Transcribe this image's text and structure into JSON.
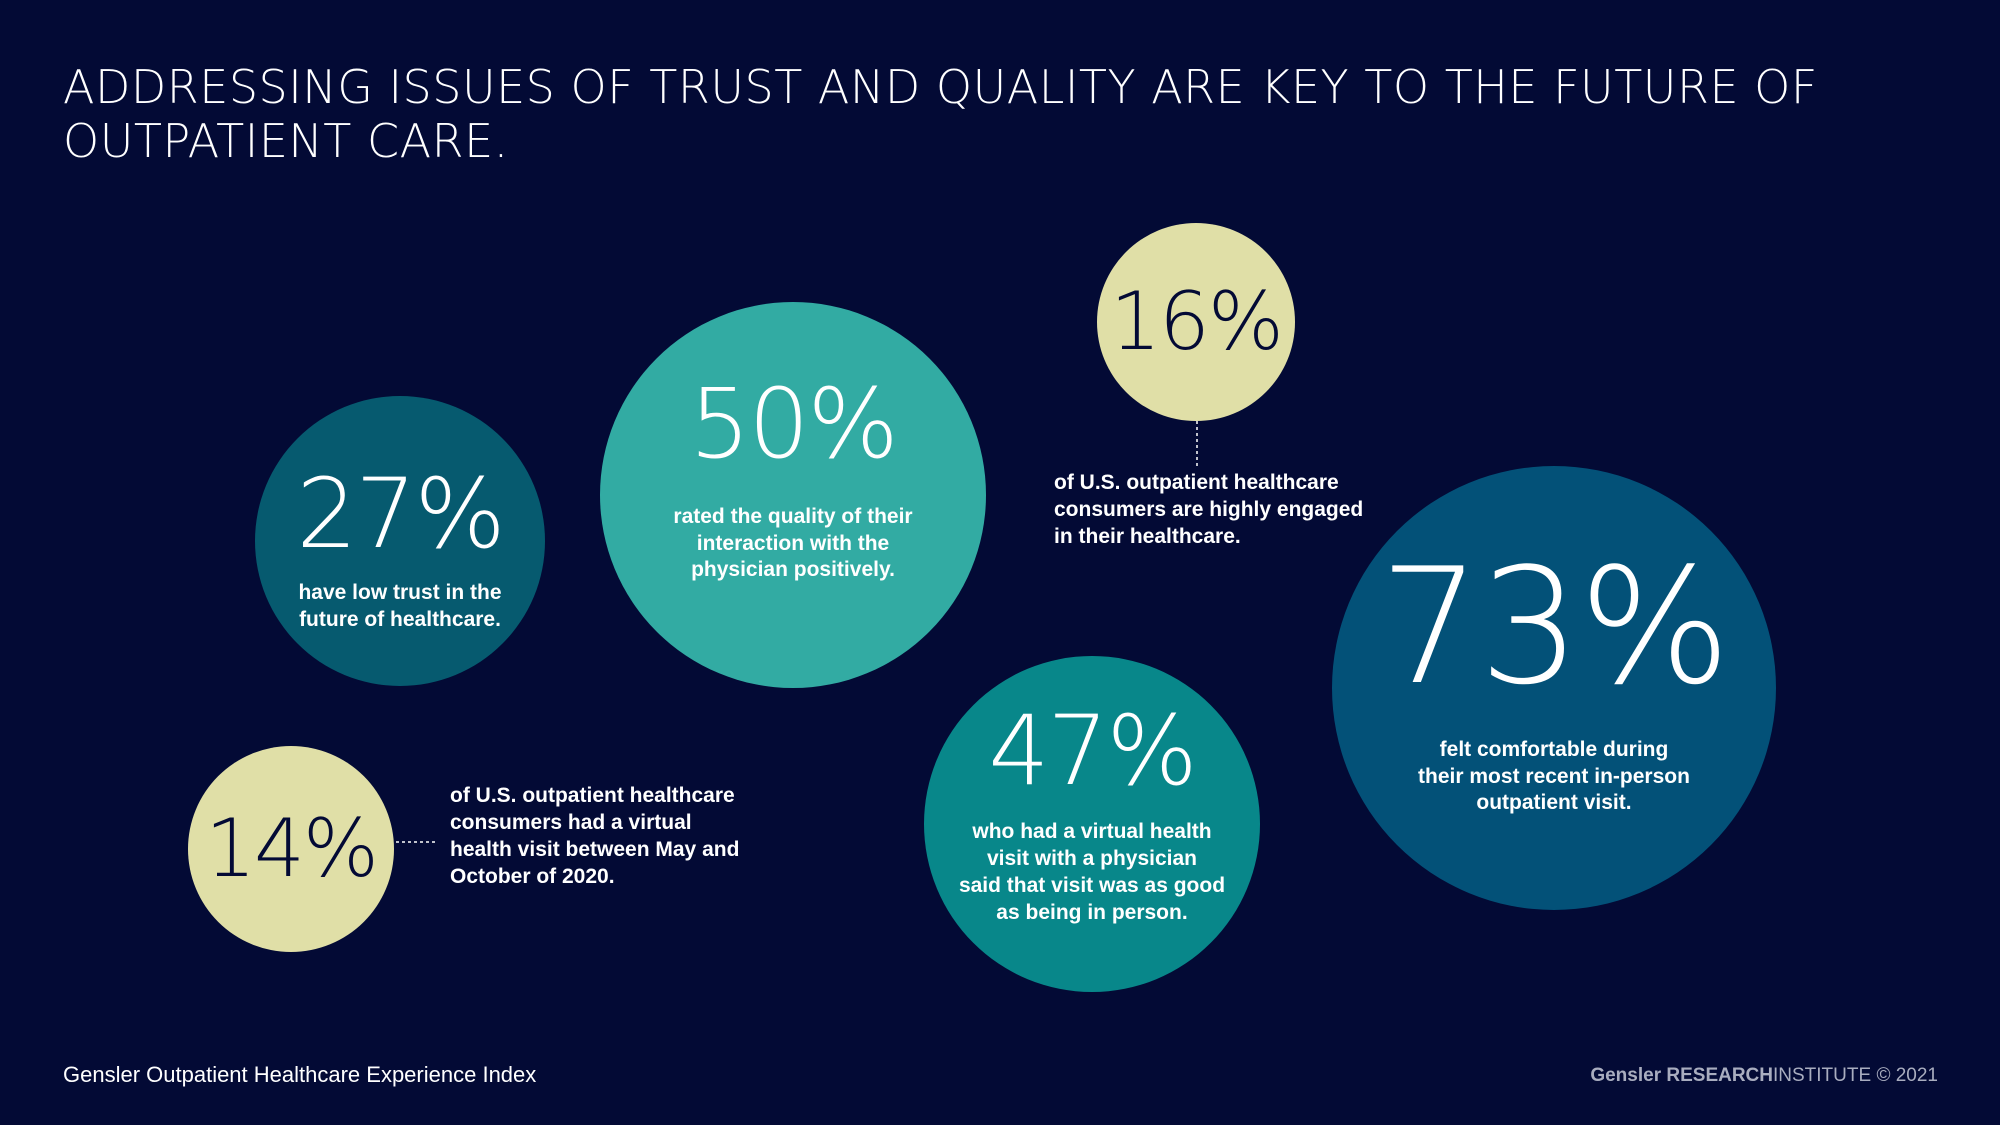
{
  "title": "ADDRESSING ISSUES OF TRUST AND QUALITY ARE KEY TO THE FUTURE OF OUTPATIENT CARE.",
  "colors": {
    "background": "#030a35",
    "teal_dark": "#065a6f",
    "teal_light": "#32aba3",
    "teal_mid": "#08878a",
    "blue": "#035178",
    "pale_yellow": "#e0dfa7"
  },
  "stats": {
    "trust": {
      "value": "27%",
      "caption": "have low trust in the\nfuture of healthcare."
    },
    "quality": {
      "value": "50%",
      "caption": "rated the quality of their\ninteraction with the\nphysician positively."
    },
    "engaged": {
      "value": "16%",
      "caption": "of U.S. outpatient healthcare\nconsumers are highly engaged\nin their healthcare."
    },
    "virtual_visit": {
      "value": "14%",
      "caption": "of U.S. outpatient healthcare\nconsumers had a virtual\nhealth visit between May and\nOctober of 2020."
    },
    "virtual_good": {
      "value": "47%",
      "caption": "who had a virtual health\nvisit with a physician\nsaid that visit was as good\nas being in person."
    },
    "comfortable": {
      "value": "73%",
      "caption": "felt comfortable during\ntheir most recent in-person\noutpatient visit."
    }
  },
  "footer": {
    "source": "Gensler Outpatient Healthcare Experience Index",
    "brand": "Gensler",
    "research": "RESEARCH",
    "institute": "INSTITUTE",
    "copyright": "© 2021"
  }
}
